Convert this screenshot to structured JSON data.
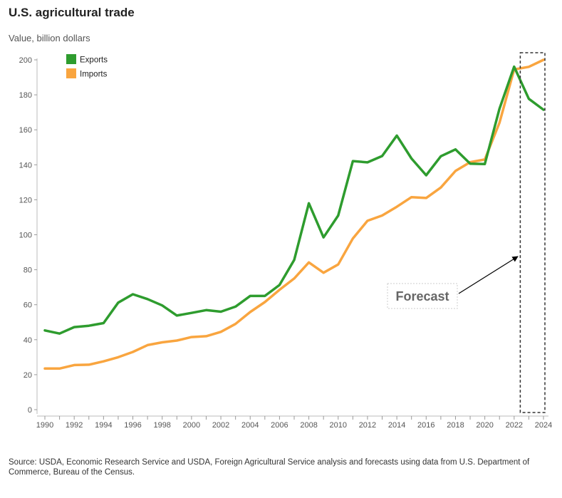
{
  "header": {
    "title": "U.S. agricultural trade",
    "subtitle": "Value, billion dollars"
  },
  "footer": {
    "source": "Source: USDA, Economic Research Service and USDA, Foreign Agricultural Service analysis and forecasts using data from U.S. Department of Commerce, Bureau of the Census."
  },
  "annotation": {
    "label": "Forecast"
  },
  "colors": {
    "exports": "#2e9c2e",
    "imports": "#f9a53f"
  },
  "chart_data": {
    "type": "line",
    "title": "U.S. agricultural trade",
    "subtitle": "Value, billion dollars",
    "ylim": [
      0,
      200
    ],
    "y_ticks": [
      0,
      20,
      40,
      60,
      80,
      100,
      120,
      140,
      160,
      180,
      200
    ],
    "x_ticks": [
      1990,
      1992,
      1994,
      1996,
      1998,
      2000,
      2002,
      2004,
      2006,
      2008,
      2010,
      2012,
      2014,
      2016,
      2018,
      2020,
      2022,
      2024
    ],
    "x": [
      1990,
      1991,
      1992,
      1993,
      1994,
      1995,
      1996,
      1997,
      1998,
      1999,
      2000,
      2001,
      2002,
      2003,
      2004,
      2005,
      2006,
      2007,
      2008,
      2009,
      2010,
      2011,
      2012,
      2013,
      2014,
      2015,
      2016,
      2017,
      2018,
      2019,
      2020,
      2021,
      2022,
      2023,
      2024
    ],
    "series": [
      {
        "name": "Exports",
        "values": [
          45.3,
          43.5,
          47.2,
          48.0,
          49.5,
          61.2,
          66.0,
          63.2,
          59.6,
          53.8,
          55.3,
          56.9,
          56.0,
          58.9,
          65.0,
          65.0,
          71.3,
          85.6,
          118.0,
          98.5,
          111.0,
          142.1,
          141.4,
          145.0,
          156.7,
          143.6,
          134.0,
          144.9,
          148.8,
          140.6,
          140.4,
          172.0,
          196.1,
          177.7,
          171.5
        ]
      },
      {
        "name": "Imports",
        "values": [
          23.5,
          23.5,
          25.5,
          25.7,
          27.6,
          30.0,
          33.0,
          36.9,
          38.5,
          39.5,
          41.5,
          42.0,
          44.5,
          49.0,
          55.8,
          61.5,
          68.5,
          75.0,
          84.2,
          78.3,
          83.0,
          97.9,
          108.0,
          111.0,
          116.0,
          121.5,
          121.0,
          127.0,
          136.5,
          141.5,
          143.0,
          164.0,
          194.5,
          196.0,
          200.0
        ]
      }
    ],
    "forecast_years": [
      2023,
      2024
    ],
    "legend": {
      "position": "top-left",
      "entries": [
        "Exports",
        "Imports"
      ]
    },
    "grid": false
  }
}
